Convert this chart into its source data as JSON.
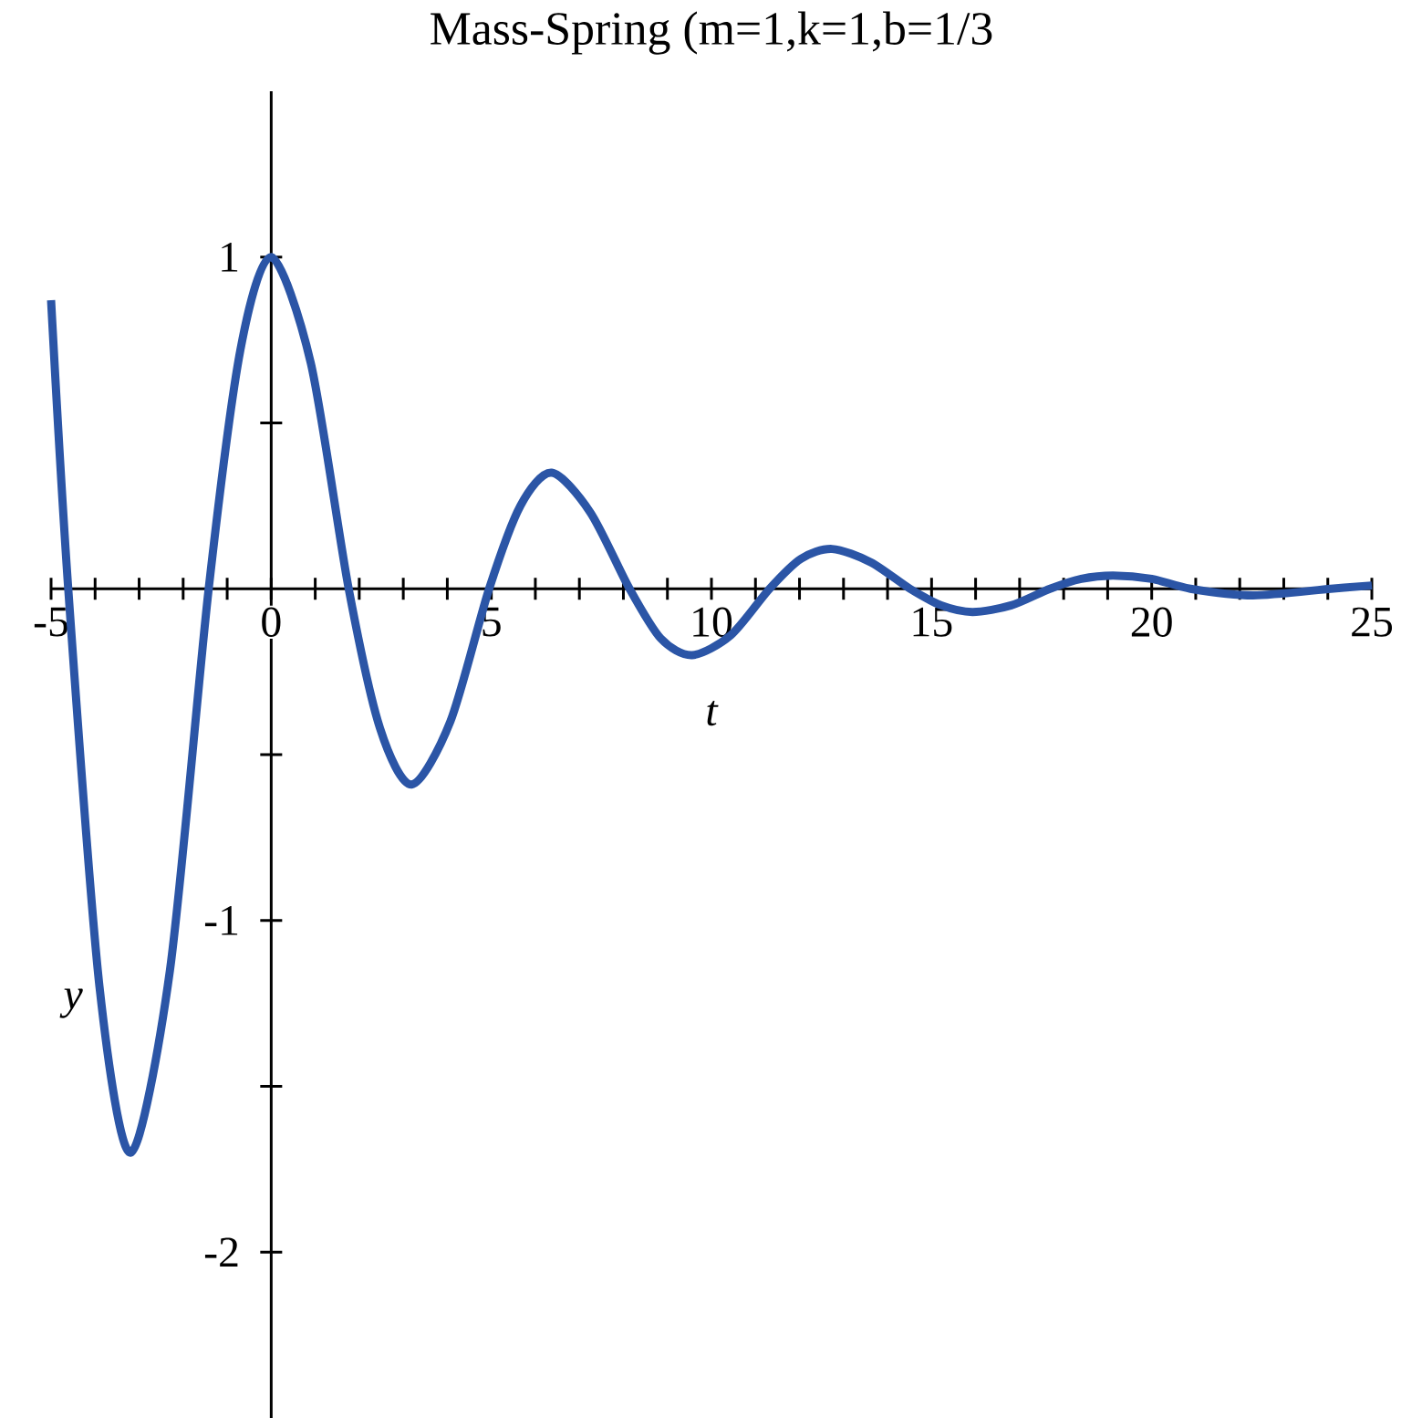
{
  "chart_data": {
    "type": "line",
    "title": "Mass-Spring (m=1,k=1,b=1/3",
    "xlabel": "t",
    "ylabel": "y",
    "xlim": [
      -5,
      25
    ],
    "ylim": [
      -2.5,
      1.5
    ],
    "xticks": [
      -5,
      {
        "value": -4,
        "label": null
      },
      {
        "value": -3,
        "label": null
      },
      {
        "value": -2,
        "label": null
      },
      {
        "value": -1,
        "label": null
      },
      0,
      {
        "value": 1,
        "label": null
      },
      {
        "value": 2,
        "label": null
      },
      {
        "value": 3,
        "label": null
      },
      {
        "value": 4,
        "label": null
      },
      5,
      {
        "value": 6,
        "label": null
      },
      {
        "value": 7,
        "label": null
      },
      {
        "value": 8,
        "label": null
      },
      {
        "value": 9,
        "label": null
      },
      10,
      {
        "value": 11,
        "label": null
      },
      {
        "value": 12,
        "label": null
      },
      {
        "value": 13,
        "label": null
      },
      {
        "value": 14,
        "label": null
      },
      15,
      {
        "value": 16,
        "label": null
      },
      {
        "value": 17,
        "label": null
      },
      {
        "value": 18,
        "label": null
      },
      {
        "value": 19,
        "label": null
      },
      20,
      {
        "value": 21,
        "label": null
      },
      {
        "value": 22,
        "label": null
      },
      {
        "value": 23,
        "label": null
      },
      {
        "value": 24,
        "label": null
      },
      25
    ],
    "yticks": [
      -2,
      {
        "value": -1.5,
        "label": null
      },
      -1,
      {
        "value": -0.5,
        "label": null
      },
      {
        "value": 0.5,
        "label": null
      },
      1
    ],
    "series": [
      {
        "color": "#2b55a6",
        "x": [
          -5,
          -4.61,
          -3.9,
          -3.19,
          -2.3,
          -1.42,
          -0.7,
          0,
          0.9,
          1.76,
          2.47,
          3.19,
          4.07,
          4.95,
          5.66,
          6.37,
          7.25,
          8.14,
          8.85,
          9.56,
          10.44,
          11.32,
          12.03,
          12.74,
          13.62,
          14.51,
          15.22,
          15.93,
          16.81,
          17.69,
          18.4,
          19.12,
          20.0,
          20.88,
          22.3,
          24.07,
          25
        ],
        "values": [
          0.87,
          0,
          -1.2,
          -1.7,
          -1.15,
          0,
          0.72,
          1,
          0.68,
          0,
          -0.42,
          -0.59,
          -0.4,
          0,
          0.25,
          0.35,
          0.23,
          0,
          -0.15,
          -0.2,
          -0.14,
          0,
          0.09,
          0.12,
          0.08,
          0,
          -0.05,
          -0.07,
          -0.05,
          0,
          0.03,
          0.04,
          0.03,
          0,
          -0.02,
          0,
          0.01
        ]
      }
    ],
    "grid": false,
    "marker": "none",
    "line_style": "solid"
  }
}
